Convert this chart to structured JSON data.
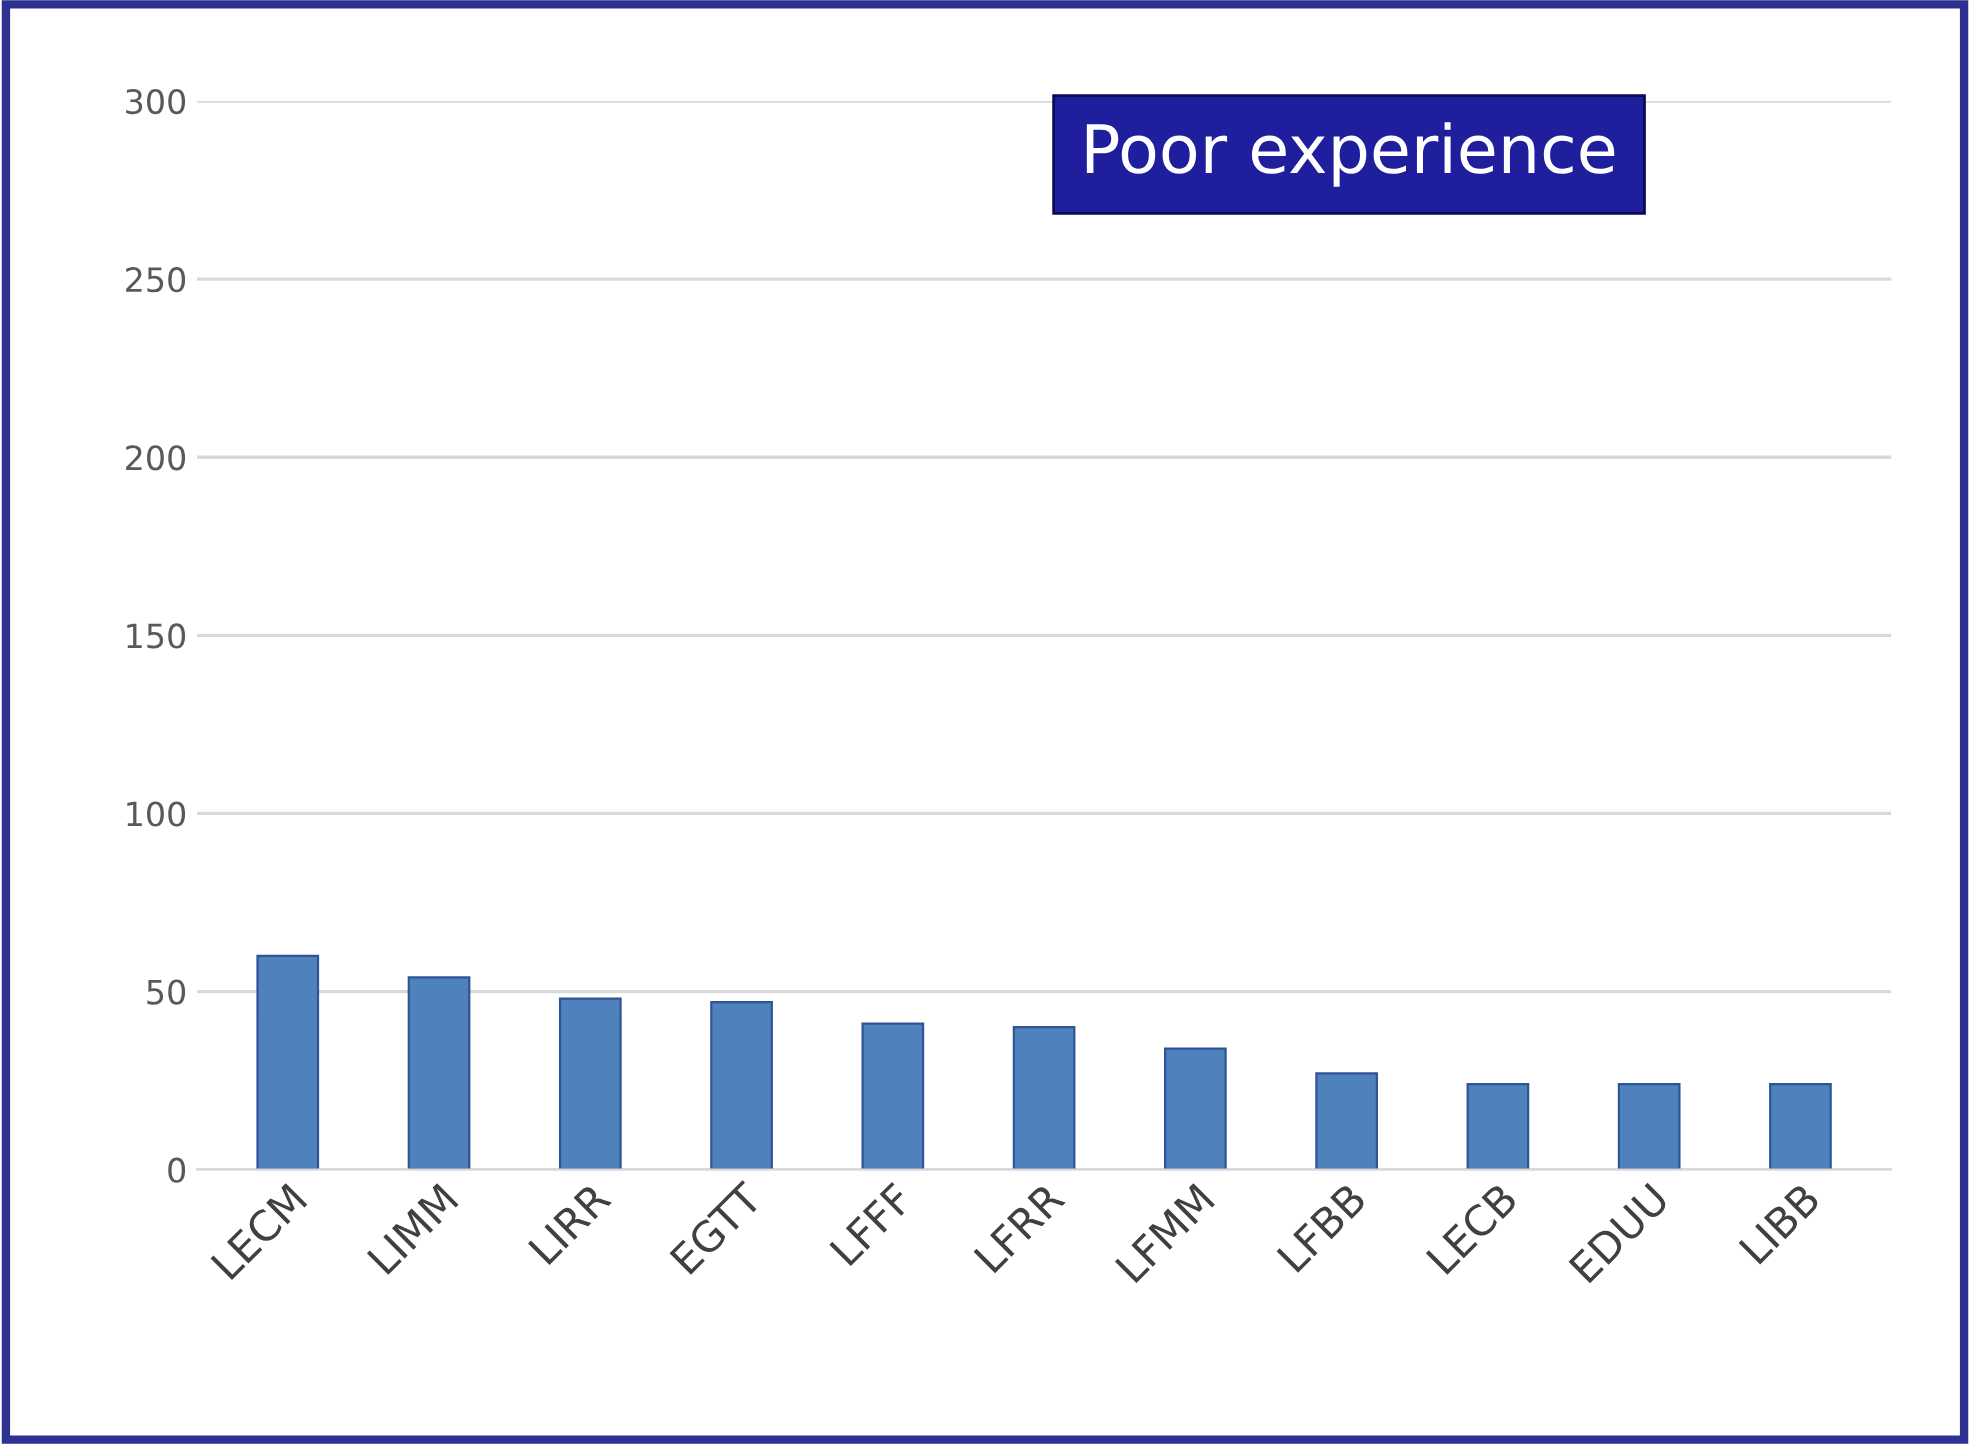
{
  "chart_data": {
    "type": "bar",
    "title": "Poor experience",
    "categories": [
      "LECM",
      "LIMM",
      "LIRR",
      "EGTT",
      "LFFF",
      "LFRR",
      "LFMM",
      "LFBB",
      "LECB",
      "EDUU",
      "LIBB"
    ],
    "values": [
      60,
      54,
      48,
      47,
      41,
      40,
      34,
      27,
      24,
      24,
      24
    ],
    "color": "#4f81bd",
    "ylim": [
      0,
      300
    ],
    "yticks": [
      0,
      50,
      100,
      150,
      200,
      250,
      300
    ],
    "grid": "y"
  }
}
